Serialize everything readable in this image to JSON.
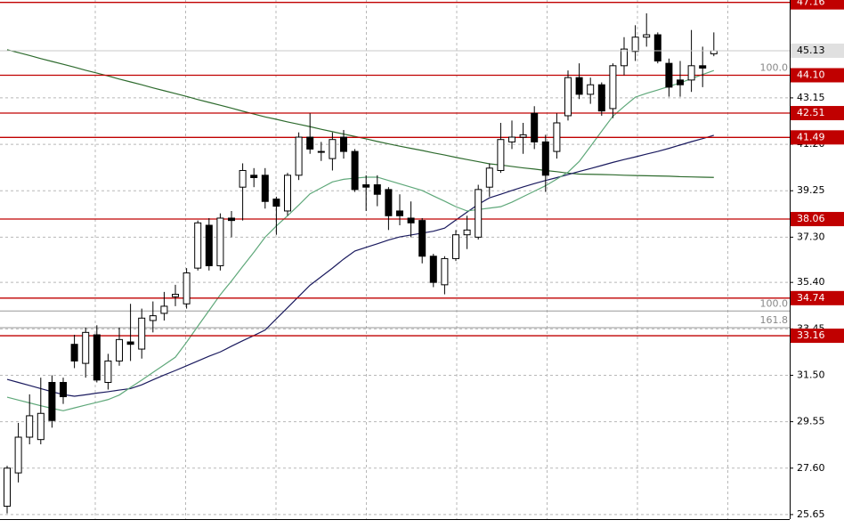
{
  "chart_data": {
    "type": "candlestick",
    "ylim": [
      25.46,
      47.26
    ],
    "yticks": [
      25.65,
      {
        "value": 27.6,
        "label": "27.60"
      },
      29.55,
      {
        "value": 31.5,
        "label": "31.50"
      },
      33.45,
      {
        "value": 35.4,
        "label": "35.40"
      },
      {
        "value": 37.3,
        "label": "37.30"
      },
      39.25,
      {
        "value": 41.2,
        "label": "41.20"
      },
      43.15
    ],
    "grid": true,
    "candles": {
      "open": [
        26.0,
        27.4,
        28.9,
        28.8,
        31.2,
        31.2,
        32.8,
        32.0,
        33.2,
        31.2,
        32.1,
        32.9,
        32.6,
        33.8,
        34.1,
        34.8,
        34.5,
        36.0,
        37.8,
        36.1,
        38.1,
        39.4,
        39.9,
        39.9,
        38.9,
        38.4,
        39.9,
        41.5,
        40.9,
        40.6,
        41.5,
        40.9,
        39.5,
        39.5,
        39.3,
        38.4,
        38.1,
        38.0,
        36.5,
        35.3,
        36.4,
        37.4,
        37.3,
        39.4,
        40.1,
        41.3,
        41.5,
        42.5,
        41.3,
        40.9,
        42.4,
        44.0,
        43.3,
        43.7,
        42.7,
        44.5,
        45.1,
        45.7,
        45.8,
        44.6,
        43.9,
        43.9,
        44.5,
        45.0
      ],
      "high": [
        27.7,
        29.5,
        30.7,
        31.4,
        31.5,
        31.4,
        33.2,
        33.5,
        33.6,
        32.4,
        33.5,
        34.5,
        34.3,
        34.6,
        35.0,
        35.3,
        36.0,
        38.0,
        38.1,
        38.3,
        38.4,
        40.4,
        40.2,
        40.2,
        39.0,
        40.0,
        41.7,
        42.5,
        41.3,
        41.7,
        41.8,
        41.0,
        39.9,
        39.9,
        39.4,
        39.1,
        38.8,
        38.1,
        36.6,
        36.5,
        37.6,
        38.2,
        39.5,
        40.4,
        42.1,
        42.2,
        42.1,
        42.8,
        41.6,
        42.5,
        44.3,
        44.6,
        44.0,
        43.8,
        44.6,
        45.7,
        46.2,
        46.7,
        45.9,
        44.8,
        44.7,
        46.0,
        45.3,
        45.9
      ],
      "low": [
        25.7,
        27.0,
        28.6,
        28.6,
        29.3,
        30.3,
        31.8,
        31.4,
        31.2,
        30.9,
        31.9,
        32.1,
        32.2,
        33.3,
        33.8,
        34.4,
        34.3,
        35.9,
        35.9,
        35.9,
        37.3,
        38.0,
        39.4,
        38.5,
        37.4,
        38.2,
        39.7,
        40.8,
        40.5,
        40.1,
        40.6,
        39.2,
        38.4,
        38.6,
        37.6,
        37.8,
        37.3,
        36.2,
        35.2,
        34.9,
        36.3,
        36.8,
        37.2,
        39.0,
        40.0,
        41.0,
        40.8,
        41.0,
        39.2,
        40.6,
        42.2,
        43.1,
        42.9,
        42.4,
        42.3,
        44.1,
        44.7,
        45.3,
        44.6,
        43.2,
        43.2,
        43.4,
        43.6,
        44.9
      ],
      "close": [
        27.6,
        28.9,
        29.8,
        29.9,
        29.6,
        30.6,
        32.1,
        33.3,
        31.3,
        32.1,
        33.0,
        32.8,
        33.9,
        34.0,
        34.4,
        34.9,
        35.8,
        37.9,
        36.1,
        38.1,
        38.0,
        40.1,
        39.8,
        38.8,
        38.6,
        39.9,
        41.5,
        41.0,
        40.9,
        41.4,
        40.9,
        39.3,
        39.4,
        39.1,
        38.2,
        38.2,
        37.9,
        36.5,
        35.4,
        36.4,
        37.4,
        37.6,
        39.3,
        40.2,
        41.4,
        41.5,
        41.6,
        41.3,
        39.9,
        42.1,
        44.0,
        43.3,
        43.7,
        42.6,
        44.5,
        45.2,
        45.7,
        45.8,
        44.7,
        43.6,
        43.7,
        44.5,
        44.4,
        45.13
      ]
    },
    "series": [
      {
        "color": "#2e6b2e",
        "values": [
          45.17,
          45.05,
          44.93,
          44.8,
          44.68,
          44.56,
          44.44,
          44.31,
          44.19,
          44.07,
          43.94,
          43.82,
          43.7,
          43.57,
          43.45,
          43.33,
          43.21,
          43.08,
          42.96,
          42.84,
          42.72,
          42.59,
          42.47,
          42.35,
          42.25,
          42.14,
          42.04,
          41.94,
          41.83,
          41.73,
          41.63,
          41.53,
          41.43,
          41.32,
          41.22,
          41.12,
          41.03,
          40.94,
          40.84,
          40.75,
          40.65,
          40.56,
          40.47,
          40.38,
          40.33,
          40.27,
          40.21,
          40.16,
          40.1,
          40.05,
          39.99,
          39.95,
          39.94,
          39.93,
          39.92,
          39.9,
          39.89,
          39.88,
          39.87,
          39.86,
          39.84,
          39.83,
          39.82,
          39.81
        ]
      },
      {
        "color": "#1a1a5e",
        "values": [
          31.33,
          31.2,
          31.07,
          30.94,
          30.81,
          30.69,
          30.62,
          30.68,
          30.75,
          30.81,
          30.88,
          30.94,
          31.1,
          31.31,
          31.51,
          31.7,
          31.9,
          32.1,
          32.3,
          32.48,
          32.72,
          32.95,
          33.17,
          33.4,
          33.87,
          34.34,
          34.81,
          35.28,
          35.64,
          36.0,
          36.38,
          36.72,
          36.87,
          37.02,
          37.18,
          37.31,
          37.39,
          37.47,
          37.55,
          37.68,
          38.02,
          38.35,
          38.68,
          38.95,
          39.1,
          39.26,
          39.41,
          39.55,
          39.68,
          39.8,
          39.93,
          40.06,
          40.18,
          40.31,
          40.44,
          40.56,
          40.67,
          40.79,
          40.9,
          41.03,
          41.17,
          41.31,
          41.44,
          41.58
        ]
      },
      {
        "color": "#5fa87a",
        "values": [
          30.58,
          30.46,
          30.34,
          30.22,
          30.11,
          30.01,
          30.13,
          30.25,
          30.36,
          30.48,
          30.67,
          30.99,
          31.3,
          31.62,
          31.94,
          32.26,
          32.89,
          33.56,
          34.22,
          34.88,
          35.46,
          36.07,
          36.67,
          37.3,
          37.77,
          38.2,
          38.65,
          39.12,
          39.37,
          39.62,
          39.73,
          39.78,
          39.82,
          39.82,
          39.68,
          39.54,
          39.4,
          39.26,
          39.03,
          38.81,
          38.58,
          38.4,
          38.46,
          38.52,
          38.58,
          38.77,
          39.0,
          39.23,
          39.46,
          39.74,
          40.03,
          40.48,
          41.11,
          41.75,
          42.38,
          42.79,
          43.18,
          43.34,
          43.48,
          43.63,
          43.78,
          43.96,
          44.13,
          44.3
        ]
      }
    ],
    "levels": [
      47.16,
      {
        "value": 44.1,
        "label": "44.10"
      },
      42.51,
      41.49,
      38.06,
      34.74,
      33.16
    ],
    "level_color": "#c00000",
    "fib_levels": [
      {
        "value": 44.1,
        "label": "100.0"
      },
      {
        "value": 34.2,
        "label": "100.0"
      },
      {
        "value": 33.5,
        "label": "161.8"
      }
    ],
    "last_price": 45.13
  }
}
